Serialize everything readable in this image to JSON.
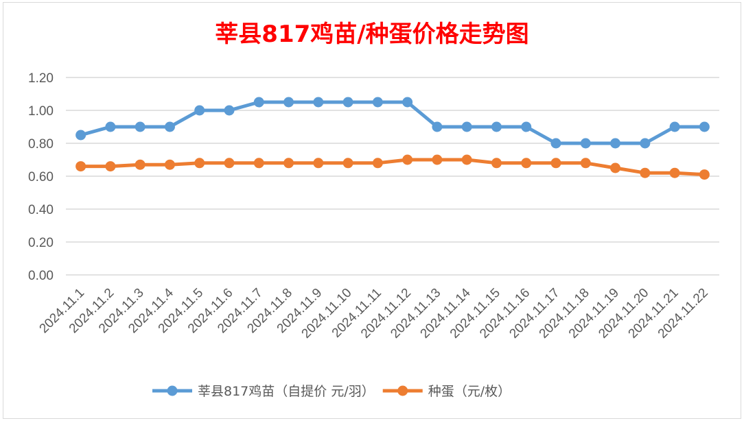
{
  "chart_data": {
    "type": "line",
    "title": "莘县817鸡苗/种蛋价格走势图",
    "xlabel": "",
    "ylabel": "",
    "ylim": [
      0,
      1.2
    ],
    "yticks": [
      "0.00",
      "0.20",
      "0.40",
      "0.60",
      "0.80",
      "1.00",
      "1.20"
    ],
    "grid": true,
    "legend_position": "bottom",
    "categories": [
      "2024.11.1",
      "2024.11.2",
      "2024.11.3",
      "2024.11.4",
      "2024.11.5",
      "2024.11.6",
      "2024.11.7",
      "2024.11.8",
      "2024.11.9",
      "2024.11.10",
      "2024.11.11",
      "2024.11.12",
      "2024.11.13",
      "2024.11.14",
      "2024.11.15",
      "2024.11.16",
      "2024.11.17",
      "2024.11.18",
      "2024.11.19",
      "2024.11.20",
      "2024.11.21",
      "2024.11.22"
    ],
    "series": [
      {
        "name": "莘县817鸡苗（自提价 元/羽）",
        "color": "#5b9bd5",
        "values": [
          0.85,
          0.9,
          0.9,
          0.9,
          1.0,
          1.0,
          1.05,
          1.05,
          1.05,
          1.05,
          1.05,
          1.05,
          0.9,
          0.9,
          0.9,
          0.9,
          0.8,
          0.8,
          0.8,
          0.8,
          0.9,
          0.9
        ]
      },
      {
        "name": "种蛋（元/枚）",
        "color": "#ed7d31",
        "values": [
          0.66,
          0.66,
          0.67,
          0.67,
          0.68,
          0.68,
          0.68,
          0.68,
          0.68,
          0.68,
          0.68,
          0.7,
          0.7,
          0.7,
          0.68,
          0.68,
          0.68,
          0.68,
          0.65,
          0.62,
          0.62,
          0.61
        ]
      }
    ]
  }
}
